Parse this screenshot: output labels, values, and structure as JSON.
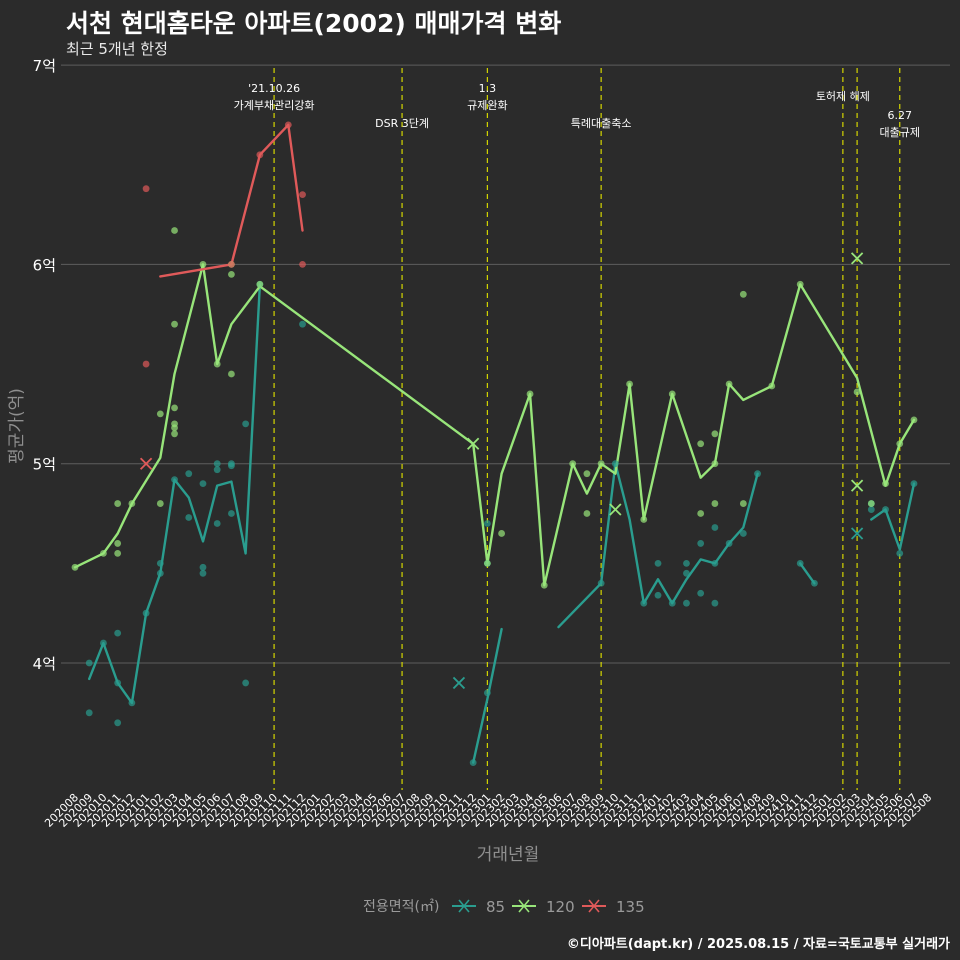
{
  "title": "서천 현대홈타운 아파트(2002) 매매가격 변화",
  "subtitle": "최근 5개년 한정",
  "caption": "©디아파트(dapt.kr) / 2025.08.15 / 자료=국토교통부 실거래가",
  "chart_data": {
    "type": "line",
    "xlabel": "거래년월",
    "ylabel": "평균가(억)",
    "ylim": [
      3.35,
      7.0
    ],
    "y_ticks": [
      {
        "value": 4,
        "label": "4억"
      },
      {
        "value": 5,
        "label": "5억"
      },
      {
        "value": 6,
        "label": "6억"
      },
      {
        "value": 7,
        "label": "7억"
      }
    ],
    "categories": [
      "202008",
      "202009",
      "202010",
      "202011",
      "202012",
      "202101",
      "202102",
      "202103",
      "202104",
      "202105",
      "202106",
      "202107",
      "202108",
      "202109",
      "202110",
      "202111",
      "202112",
      "202201",
      "202202",
      "202203",
      "202204",
      "202205",
      "202206",
      "202207",
      "202208",
      "202209",
      "202210",
      "202211",
      "202212",
      "202301",
      "202302",
      "202303",
      "202304",
      "202305",
      "202306",
      "202307",
      "202308",
      "202309",
      "202310",
      "202311",
      "202312",
      "202401",
      "202402",
      "202403",
      "202404",
      "202405",
      "202406",
      "202407",
      "202408",
      "202409",
      "202410",
      "202411",
      "202412",
      "202501",
      "202502",
      "202503",
      "202504",
      "202505",
      "202506",
      "202507",
      "202508"
    ],
    "legend_title": "전용면적(㎡)",
    "series": [
      {
        "name": "85",
        "color": "#2a9d8f",
        "line_segments": [
          [
            [
              1,
              3.92
            ],
            [
              2,
              4.1
            ],
            [
              3,
              3.9
            ],
            [
              4,
              3.8
            ],
            [
              5,
              4.25
            ],
            [
              6,
              4.45
            ],
            [
              7,
              4.92
            ],
            [
              8,
              4.83
            ],
            [
              9,
              4.61
            ],
            [
              10,
              4.89
            ],
            [
              11,
              4.91
            ],
            [
              12,
              4.55
            ],
            [
              13,
              5.9
            ]
          ],
          [
            [
              28,
              3.5
            ],
            [
              29,
              3.82
            ],
            [
              30,
              4.17
            ]
          ],
          [
            [
              34,
              4.18
            ],
            [
              37,
              4.4
            ],
            [
              38,
              5.0
            ],
            [
              39,
              4.72
            ],
            [
              40,
              4.3
            ],
            [
              41,
              4.42
            ],
            [
              42,
              4.3
            ],
            [
              43,
              4.42
            ],
            [
              44,
              4.52
            ],
            [
              45,
              4.5
            ],
            [
              46,
              4.6
            ],
            [
              47,
              4.68
            ],
            [
              48,
              4.95
            ]
          ],
          [
            [
              51,
              4.5
            ],
            [
              52,
              4.4
            ]
          ],
          [
            [
              56,
              4.72
            ],
            [
              57,
              4.77
            ],
            [
              58,
              4.57
            ],
            [
              59,
              4.9
            ]
          ]
        ],
        "points": [
          [
            1,
            4.0
          ],
          [
            1,
            3.75
          ],
          [
            2,
            4.1
          ],
          [
            3,
            3.7
          ],
          [
            3,
            3.9
          ],
          [
            3,
            4.15
          ],
          [
            4,
            3.8
          ],
          [
            5,
            4.25
          ],
          [
            6,
            4.45
          ],
          [
            6,
            4.5
          ],
          [
            7,
            4.92
          ],
          [
            8,
            4.73
          ],
          [
            8,
            4.95
          ],
          [
            9,
            4.45
          ],
          [
            9,
            4.48
          ],
          [
            9,
            4.9
          ],
          [
            10,
            4.7
          ],
          [
            10,
            4.97
          ],
          [
            10,
            5.0
          ],
          [
            11,
            4.75
          ],
          [
            11,
            4.99
          ],
          [
            11,
            5.0
          ],
          [
            12,
            5.2
          ],
          [
            12,
            3.9
          ],
          [
            13,
            5.9
          ],
          [
            16,
            5.7
          ],
          [
            28,
            3.5
          ],
          [
            29,
            3.85
          ],
          [
            29,
            4.5
          ],
          [
            29,
            4.7
          ],
          [
            37,
            4.4
          ],
          [
            38,
            5.0
          ],
          [
            40,
            4.3
          ],
          [
            41,
            4.34
          ],
          [
            41,
            4.5
          ],
          [
            42,
            4.3
          ],
          [
            43,
            4.3
          ],
          [
            43,
            4.45
          ],
          [
            43,
            4.5
          ],
          [
            44,
            4.35
          ],
          [
            44,
            4.6
          ],
          [
            45,
            4.3
          ],
          [
            45,
            4.5
          ],
          [
            45,
            4.68
          ],
          [
            46,
            4.6
          ],
          [
            47,
            4.65
          ],
          [
            48,
            4.95
          ],
          [
            51,
            4.5
          ],
          [
            52,
            4.4
          ],
          [
            56,
            4.77
          ],
          [
            56,
            4.8
          ],
          [
            57,
            4.77
          ],
          [
            58,
            4.55
          ],
          [
            59,
            4.9
          ]
        ],
        "cross_markers": [
          [
            27,
            3.9
          ],
          [
            55,
            4.65
          ]
        ]
      },
      {
        "name": "120",
        "color": "#98e57a",
        "line_segments": [
          [
            [
              0,
              4.48
            ],
            [
              2,
              4.55
            ],
            [
              3,
              4.65
            ],
            [
              4,
              4.8
            ],
            [
              6,
              5.03
            ],
            [
              7,
              5.45
            ],
            [
              9,
              6.0
            ],
            [
              10,
              5.5
            ],
            [
              11,
              5.7
            ],
            [
              13,
              5.89
            ],
            [
              28,
              5.1
            ],
            [
              29,
              4.5
            ],
            [
              30,
              4.95
            ],
            [
              32,
              5.35
            ],
            [
              33,
              4.39
            ],
            [
              35,
              5.0
            ],
            [
              36,
              4.85
            ],
            [
              37,
              5.0
            ],
            [
              38,
              4.95
            ],
            [
              39,
              5.4
            ],
            [
              40,
              4.72
            ],
            [
              42,
              5.35
            ],
            [
              44,
              4.93
            ],
            [
              45,
              5.0
            ],
            [
              46,
              5.4
            ],
            [
              47,
              5.32
            ],
            [
              49,
              5.39
            ],
            [
              51,
              5.9
            ],
            [
              55,
              5.43
            ],
            [
              57,
              4.89
            ],
            [
              58,
              5.1
            ],
            [
              59,
              5.22
            ]
          ]
        ],
        "points": [
          [
            0,
            4.48
          ],
          [
            2,
            4.55
          ],
          [
            3,
            4.8
          ],
          [
            3,
            4.6
          ],
          [
            3,
            4.55
          ],
          [
            4,
            4.8
          ],
          [
            6,
            5.25
          ],
          [
            6,
            4.8
          ],
          [
            7,
            5.7
          ],
          [
            7,
            5.28
          ],
          [
            7,
            5.2
          ],
          [
            7,
            5.18
          ],
          [
            7,
            5.15
          ],
          [
            7,
            6.17
          ],
          [
            9,
            6.0
          ],
          [
            10,
            5.5
          ],
          [
            11,
            5.95
          ],
          [
            11,
            5.45
          ],
          [
            11,
            6.0
          ],
          [
            13,
            5.9
          ],
          [
            29,
            4.5
          ],
          [
            30,
            4.65
          ],
          [
            32,
            5.35
          ],
          [
            33,
            4.39
          ],
          [
            35,
            5.0
          ],
          [
            36,
            4.95
          ],
          [
            36,
            4.75
          ],
          [
            37,
            5.0
          ],
          [
            39,
            5.4
          ],
          [
            40,
            4.72
          ],
          [
            42,
            5.35
          ],
          [
            44,
            5.1
          ],
          [
            44,
            4.75
          ],
          [
            45,
            5.0
          ],
          [
            45,
            5.15
          ],
          [
            45,
            4.8
          ],
          [
            46,
            5.4
          ],
          [
            47,
            5.85
          ],
          [
            47,
            4.8
          ],
          [
            49,
            5.39
          ],
          [
            51,
            5.9
          ],
          [
            55,
            5.36
          ],
          [
            56,
            4.8
          ],
          [
            57,
            4.9
          ],
          [
            58,
            5.1
          ],
          [
            59,
            5.22
          ]
        ],
        "cross_markers": [
          [
            28,
            5.1
          ],
          [
            38,
            4.77
          ],
          [
            55,
            6.03
          ],
          [
            55,
            4.89
          ]
        ]
      },
      {
        "name": "135",
        "color": "#e05a5a",
        "line_segments": [
          [
            [
              6,
              5.94
            ],
            [
              11,
              6.0
            ],
            [
              13,
              6.55
            ],
            [
              15,
              6.7
            ],
            [
              16,
              6.17
            ]
          ]
        ],
        "points": [
          [
            5,
            6.38
          ],
          [
            5,
            5.5
          ],
          [
            11,
            6.0
          ],
          [
            13,
            6.55
          ],
          [
            15,
            6.7
          ],
          [
            16,
            6.35
          ],
          [
            16,
            6.0
          ]
        ],
        "cross_markers": [
          [
            5,
            5.0
          ]
        ]
      }
    ],
    "events": [
      {
        "index": 14.0,
        "lines": [
          "'21.10.26",
          "가계부채관리강화"
        ]
      },
      {
        "index": 23.0,
        "lines": [
          "DSR 3단계"
        ]
      },
      {
        "index": 29.0,
        "lines": [
          "1.3",
          "규제완화"
        ]
      },
      {
        "index": 37.0,
        "lines": [
          "특례대출축소"
        ]
      },
      {
        "index": 54.0,
        "lines": [
          "토허제 해제"
        ]
      },
      {
        "index": 55.0,
        "lines": []
      },
      {
        "index": 58.0,
        "lines": [
          "6.27",
          "대출규제"
        ]
      }
    ],
    "event_line_color": "#d4d600"
  }
}
